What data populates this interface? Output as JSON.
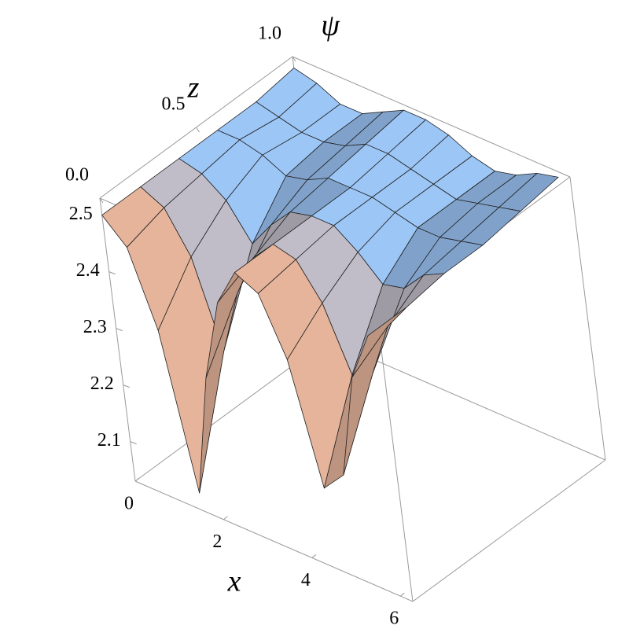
{
  "chart_data": {
    "type": "surface",
    "x_label": "x",
    "z_label": "z",
    "value_label": "ψ",
    "x": [
      0,
      0.5,
      1,
      1.5,
      2,
      2.5,
      3,
      3.5,
      4,
      4.5,
      5,
      5.5,
      6
    ],
    "z": [
      0,
      0.2,
      0.4,
      0.6,
      0.8,
      1.0
    ],
    "values": [
      [
        2.5,
        2.46,
        2.33,
        2.06,
        2.28,
        2.43,
        2.5,
        2.48,
        2.38,
        2.17,
        2.21,
        2.4,
        2.49
      ],
      [
        2.5,
        2.48,
        2.41,
        2.26,
        2.38,
        2.46,
        2.5,
        2.49,
        2.43,
        2.32,
        2.34,
        2.44,
        2.49
      ],
      [
        2.5,
        2.49,
        2.46,
        2.4,
        2.45,
        2.49,
        2.5,
        2.5,
        2.47,
        2.43,
        2.44,
        2.48,
        2.5
      ],
      [
        2.5,
        2.5,
        2.49,
        2.47,
        2.48,
        2.5,
        2.5,
        2.5,
        2.49,
        2.48,
        2.48,
        2.49,
        2.5
      ],
      [
        2.5,
        2.49,
        2.48,
        2.48,
        2.49,
        2.51,
        2.51,
        2.5,
        2.49,
        2.48,
        2.49,
        2.5,
        2.51
      ],
      [
        2.51,
        2.5,
        2.48,
        2.48,
        2.5,
        2.52,
        2.52,
        2.51,
        2.49,
        2.48,
        2.49,
        2.51,
        2.52
      ]
    ],
    "xlim": [
      0,
      6.28
    ],
    "zlim": [
      0,
      1
    ],
    "vlim": [
      2.03,
      2.53
    ],
    "xticks": [
      0,
      2,
      4,
      6
    ],
    "zticks": [
      {
        "value": 0,
        "label": "0.0"
      },
      0.5,
      {
        "value": 1,
        "label": "1.0"
      }
    ],
    "vticks": [
      2.1,
      2.2,
      2.3,
      2.4,
      2.5
    ],
    "colors": [
      "#f7b084",
      "#9cc6f6"
    ]
  }
}
